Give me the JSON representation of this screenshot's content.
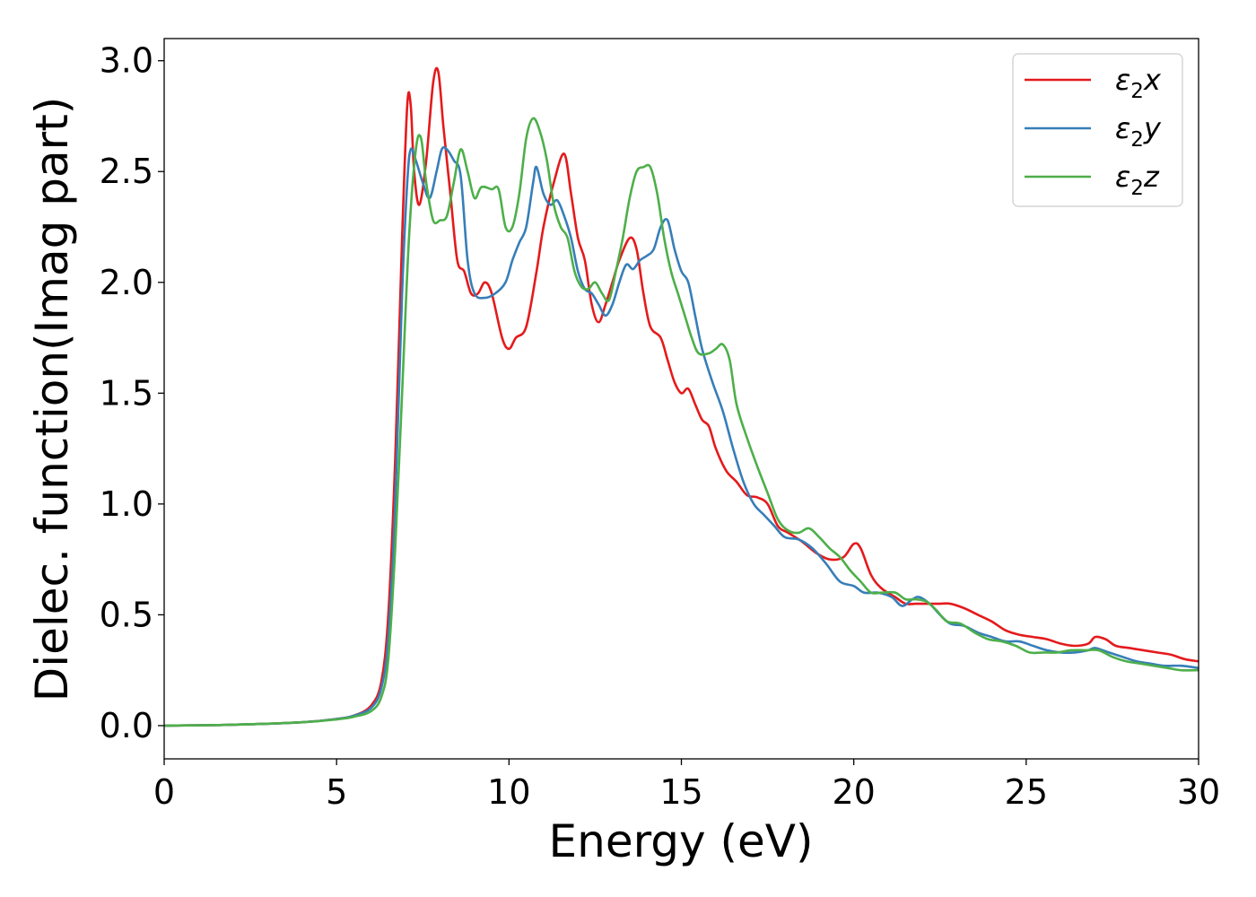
{
  "chart_data": {
    "type": "line",
    "xlabel": "Energy (eV)",
    "ylabel": "Dielec. function(Imag part)",
    "xlim": [
      0,
      30
    ],
    "ylim": [
      -0.15,
      3.1
    ],
    "xticks": [
      0,
      5,
      10,
      15,
      20,
      25,
      30
    ],
    "xtick_labels": [
      "0",
      "5",
      "10",
      "15",
      "20",
      "25",
      "30"
    ],
    "yticks": [
      0.0,
      0.5,
      1.0,
      1.5,
      2.0,
      2.5,
      3.0
    ],
    "ytick_labels": [
      "0.0",
      "0.5",
      "1.0",
      "1.5",
      "2.0",
      "2.5",
      "3.0"
    ],
    "grid": false,
    "legend_position": "top-right",
    "series": [
      {
        "name": "ε₂x",
        "label_base": "ε",
        "label_sub": "2",
        "label_tail": "x",
        "color": "#e41a1c",
        "points": [
          [
            0,
            0.0
          ],
          [
            2,
            0.004
          ],
          [
            4,
            0.015
          ],
          [
            5,
            0.03
          ],
          [
            5.5,
            0.045
          ],
          [
            6,
            0.09
          ],
          [
            6.3,
            0.2
          ],
          [
            6.5,
            0.5
          ],
          [
            6.7,
            1.2
          ],
          [
            6.9,
            2.2
          ],
          [
            7.05,
            2.8
          ],
          [
            7.15,
            2.8
          ],
          [
            7.25,
            2.5
          ],
          [
            7.4,
            2.35
          ],
          [
            7.6,
            2.55
          ],
          [
            7.8,
            2.9
          ],
          [
            7.95,
            2.95
          ],
          [
            8.1,
            2.7
          ],
          [
            8.3,
            2.4
          ],
          [
            8.5,
            2.1
          ],
          [
            8.7,
            2.05
          ],
          [
            8.9,
            1.95
          ],
          [
            9.1,
            1.95
          ],
          [
            9.3,
            2.0
          ],
          [
            9.5,
            1.95
          ],
          [
            9.8,
            1.75
          ],
          [
            10.0,
            1.7
          ],
          [
            10.2,
            1.75
          ],
          [
            10.5,
            1.8
          ],
          [
            10.8,
            2.05
          ],
          [
            11.0,
            2.25
          ],
          [
            11.3,
            2.45
          ],
          [
            11.6,
            2.58
          ],
          [
            11.8,
            2.4
          ],
          [
            12.0,
            2.2
          ],
          [
            12.2,
            2.1
          ],
          [
            12.4,
            1.9
          ],
          [
            12.6,
            1.82
          ],
          [
            12.8,
            1.9
          ],
          [
            13.0,
            2.0
          ],
          [
            13.2,
            2.1
          ],
          [
            13.5,
            2.2
          ],
          [
            13.7,
            2.15
          ],
          [
            13.9,
            1.95
          ],
          [
            14.1,
            1.8
          ],
          [
            14.4,
            1.75
          ],
          [
            14.6,
            1.65
          ],
          [
            14.8,
            1.55
          ],
          [
            15.0,
            1.5
          ],
          [
            15.2,
            1.52
          ],
          [
            15.4,
            1.45
          ],
          [
            15.6,
            1.38
          ],
          [
            15.8,
            1.35
          ],
          [
            16.0,
            1.25
          ],
          [
            16.3,
            1.15
          ],
          [
            16.6,
            1.1
          ],
          [
            16.9,
            1.04
          ],
          [
            17.2,
            1.03
          ],
          [
            17.5,
            1.0
          ],
          [
            17.8,
            0.9
          ],
          [
            18.1,
            0.87
          ],
          [
            18.5,
            0.83
          ],
          [
            18.9,
            0.78
          ],
          [
            19.3,
            0.75
          ],
          [
            19.7,
            0.76
          ],
          [
            20.0,
            0.82
          ],
          [
            20.2,
            0.8
          ],
          [
            20.5,
            0.68
          ],
          [
            20.8,
            0.62
          ],
          [
            21.2,
            0.58
          ],
          [
            21.5,
            0.55
          ],
          [
            21.8,
            0.55
          ],
          [
            22.1,
            0.55
          ],
          [
            22.5,
            0.55
          ],
          [
            22.8,
            0.55
          ],
          [
            23.2,
            0.53
          ],
          [
            23.6,
            0.5
          ],
          [
            24.0,
            0.47
          ],
          [
            24.4,
            0.43
          ],
          [
            24.8,
            0.41
          ],
          [
            25.2,
            0.4
          ],
          [
            25.6,
            0.39
          ],
          [
            26.0,
            0.37
          ],
          [
            26.4,
            0.36
          ],
          [
            26.8,
            0.37
          ],
          [
            27.0,
            0.4
          ],
          [
            27.3,
            0.39
          ],
          [
            27.6,
            0.36
          ],
          [
            28.0,
            0.35
          ],
          [
            28.4,
            0.34
          ],
          [
            28.8,
            0.33
          ],
          [
            29.2,
            0.32
          ],
          [
            29.6,
            0.3
          ],
          [
            30.0,
            0.29
          ]
        ]
      },
      {
        "name": "ε₂y",
        "label_base": "ε",
        "label_sub": "2",
        "label_tail": "y",
        "color": "#377eb8",
        "points": [
          [
            0,
            0.0
          ],
          [
            2,
            0.004
          ],
          [
            4,
            0.015
          ],
          [
            5,
            0.03
          ],
          [
            5.5,
            0.045
          ],
          [
            6,
            0.08
          ],
          [
            6.3,
            0.17
          ],
          [
            6.5,
            0.4
          ],
          [
            6.7,
            1.0
          ],
          [
            6.9,
            1.95
          ],
          [
            7.05,
            2.45
          ],
          [
            7.15,
            2.6
          ],
          [
            7.3,
            2.55
          ],
          [
            7.5,
            2.45
          ],
          [
            7.7,
            2.38
          ],
          [
            7.9,
            2.5
          ],
          [
            8.05,
            2.6
          ],
          [
            8.2,
            2.6
          ],
          [
            8.4,
            2.55
          ],
          [
            8.6,
            2.48
          ],
          [
            8.8,
            2.1
          ],
          [
            9.0,
            1.95
          ],
          [
            9.3,
            1.93
          ],
          [
            9.6,
            1.95
          ],
          [
            9.9,
            2.0
          ],
          [
            10.1,
            2.1
          ],
          [
            10.3,
            2.18
          ],
          [
            10.5,
            2.25
          ],
          [
            10.7,
            2.45
          ],
          [
            10.8,
            2.52
          ],
          [
            11.0,
            2.4
          ],
          [
            11.2,
            2.35
          ],
          [
            11.4,
            2.37
          ],
          [
            11.6,
            2.3
          ],
          [
            11.8,
            2.2
          ],
          [
            12.0,
            2.05
          ],
          [
            12.2,
            1.97
          ],
          [
            12.4,
            1.95
          ],
          [
            12.6,
            1.9
          ],
          [
            12.8,
            1.85
          ],
          [
            13.0,
            1.9
          ],
          [
            13.2,
            2.0
          ],
          [
            13.4,
            2.08
          ],
          [
            13.6,
            2.06
          ],
          [
            13.8,
            2.1
          ],
          [
            14.0,
            2.12
          ],
          [
            14.2,
            2.15
          ],
          [
            14.4,
            2.25
          ],
          [
            14.6,
            2.28
          ],
          [
            14.8,
            2.15
          ],
          [
            15.0,
            2.05
          ],
          [
            15.2,
            2.0
          ],
          [
            15.4,
            1.85
          ],
          [
            15.6,
            1.7
          ],
          [
            15.9,
            1.55
          ],
          [
            16.2,
            1.42
          ],
          [
            16.5,
            1.25
          ],
          [
            16.8,
            1.1
          ],
          [
            17.1,
            1.0
          ],
          [
            17.4,
            0.95
          ],
          [
            17.7,
            0.9
          ],
          [
            18.0,
            0.85
          ],
          [
            18.4,
            0.84
          ],
          [
            18.8,
            0.8
          ],
          [
            19.2,
            0.73
          ],
          [
            19.6,
            0.65
          ],
          [
            20.0,
            0.63
          ],
          [
            20.3,
            0.6
          ],
          [
            20.7,
            0.6
          ],
          [
            21.1,
            0.58
          ],
          [
            21.4,
            0.54
          ],
          [
            21.7,
            0.57
          ],
          [
            21.9,
            0.58
          ],
          [
            22.2,
            0.55
          ],
          [
            22.5,
            0.5
          ],
          [
            22.8,
            0.46
          ],
          [
            23.2,
            0.45
          ],
          [
            23.6,
            0.42
          ],
          [
            24.0,
            0.4
          ],
          [
            24.4,
            0.38
          ],
          [
            24.8,
            0.38
          ],
          [
            25.2,
            0.36
          ],
          [
            25.6,
            0.34
          ],
          [
            26.0,
            0.33
          ],
          [
            26.4,
            0.33
          ],
          [
            26.8,
            0.34
          ],
          [
            27.0,
            0.35
          ],
          [
            27.4,
            0.33
          ],
          [
            27.8,
            0.31
          ],
          [
            28.2,
            0.29
          ],
          [
            28.6,
            0.28
          ],
          [
            29.0,
            0.27
          ],
          [
            29.5,
            0.27
          ],
          [
            30.0,
            0.26
          ]
        ]
      },
      {
        "name": "ε₂z",
        "label_base": "ε",
        "label_sub": "2",
        "label_tail": "z",
        "color": "#4daf4a",
        "points": [
          [
            0,
            0.0
          ],
          [
            2,
            0.004
          ],
          [
            4,
            0.015
          ],
          [
            5,
            0.028
          ],
          [
            5.5,
            0.04
          ],
          [
            6,
            0.065
          ],
          [
            6.3,
            0.13
          ],
          [
            6.5,
            0.3
          ],
          [
            6.7,
            0.8
          ],
          [
            6.9,
            1.5
          ],
          [
            7.1,
            2.2
          ],
          [
            7.3,
            2.6
          ],
          [
            7.45,
            2.65
          ],
          [
            7.6,
            2.45
          ],
          [
            7.8,
            2.28
          ],
          [
            8.0,
            2.28
          ],
          [
            8.2,
            2.3
          ],
          [
            8.4,
            2.45
          ],
          [
            8.6,
            2.6
          ],
          [
            8.8,
            2.5
          ],
          [
            9.0,
            2.38
          ],
          [
            9.2,
            2.43
          ],
          [
            9.5,
            2.42
          ],
          [
            9.7,
            2.42
          ],
          [
            9.9,
            2.25
          ],
          [
            10.1,
            2.25
          ],
          [
            10.3,
            2.4
          ],
          [
            10.5,
            2.65
          ],
          [
            10.7,
            2.74
          ],
          [
            10.9,
            2.68
          ],
          [
            11.1,
            2.55
          ],
          [
            11.3,
            2.35
          ],
          [
            11.5,
            2.25
          ],
          [
            11.7,
            2.2
          ],
          [
            11.9,
            2.05
          ],
          [
            12.1,
            1.98
          ],
          [
            12.3,
            1.97
          ],
          [
            12.5,
            2.0
          ],
          [
            12.7,
            1.95
          ],
          [
            12.9,
            1.92
          ],
          [
            13.1,
            2.05
          ],
          [
            13.3,
            2.2
          ],
          [
            13.5,
            2.38
          ],
          [
            13.7,
            2.5
          ],
          [
            13.9,
            2.52
          ],
          [
            14.1,
            2.52
          ],
          [
            14.3,
            2.4
          ],
          [
            14.5,
            2.2
          ],
          [
            14.7,
            2.05
          ],
          [
            14.9,
            1.95
          ],
          [
            15.1,
            1.85
          ],
          [
            15.3,
            1.75
          ],
          [
            15.5,
            1.68
          ],
          [
            15.8,
            1.68
          ],
          [
            16.0,
            1.7
          ],
          [
            16.2,
            1.72
          ],
          [
            16.4,
            1.65
          ],
          [
            16.6,
            1.45
          ],
          [
            16.9,
            1.3
          ],
          [
            17.2,
            1.17
          ],
          [
            17.5,
            1.05
          ],
          [
            17.8,
            0.93
          ],
          [
            18.1,
            0.88
          ],
          [
            18.4,
            0.87
          ],
          [
            18.7,
            0.89
          ],
          [
            19.0,
            0.85
          ],
          [
            19.3,
            0.8
          ],
          [
            19.6,
            0.76
          ],
          [
            19.9,
            0.7
          ],
          [
            20.2,
            0.65
          ],
          [
            20.5,
            0.6
          ],
          [
            20.8,
            0.6
          ],
          [
            21.2,
            0.6
          ],
          [
            21.5,
            0.57
          ],
          [
            21.8,
            0.57
          ],
          [
            22.1,
            0.56
          ],
          [
            22.4,
            0.52
          ],
          [
            22.7,
            0.47
          ],
          [
            23.1,
            0.46
          ],
          [
            23.5,
            0.42
          ],
          [
            23.9,
            0.39
          ],
          [
            24.3,
            0.38
          ],
          [
            24.7,
            0.36
          ],
          [
            25.1,
            0.33
          ],
          [
            25.5,
            0.33
          ],
          [
            25.9,
            0.33
          ],
          [
            26.3,
            0.34
          ],
          [
            26.7,
            0.34
          ],
          [
            27.1,
            0.34
          ],
          [
            27.5,
            0.31
          ],
          [
            27.9,
            0.29
          ],
          [
            28.3,
            0.28
          ],
          [
            28.7,
            0.27
          ],
          [
            29.1,
            0.26
          ],
          [
            29.5,
            0.25
          ],
          [
            30.0,
            0.25
          ]
        ]
      }
    ]
  }
}
